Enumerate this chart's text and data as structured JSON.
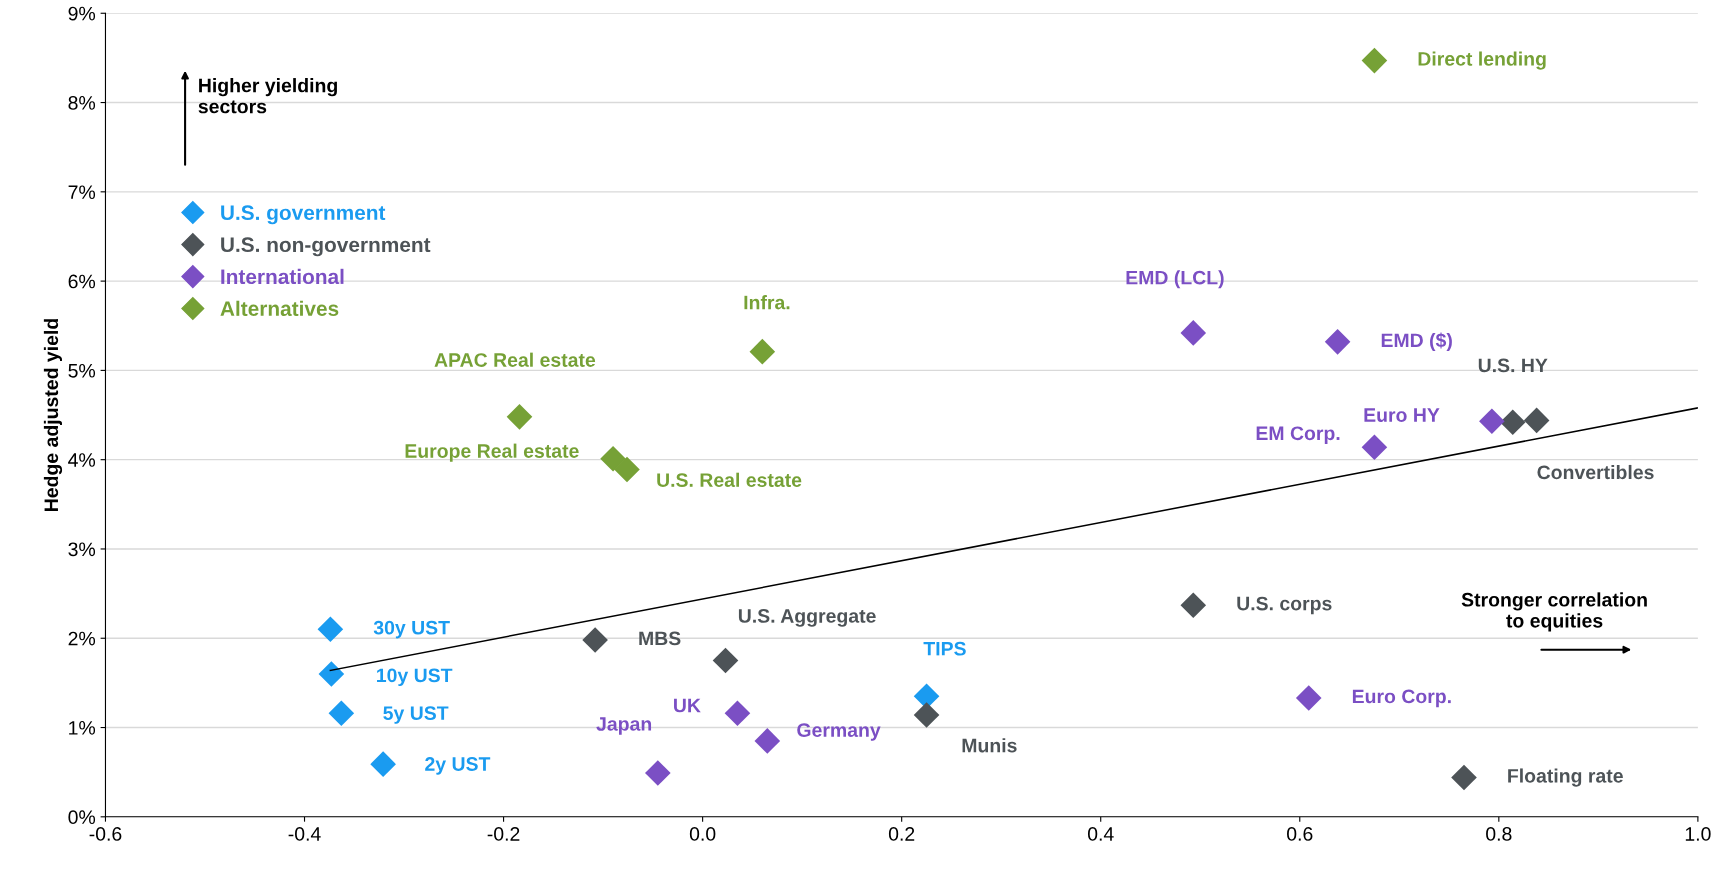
{
  "chart_data": {
    "type": "scatter",
    "ylabel": "Hedge adjusted yield",
    "xlim": [
      -0.6,
      1.0
    ],
    "ylim": [
      0,
      9
    ],
    "xticks": [
      {
        "value": -0.6,
        "label": "-0.6"
      },
      {
        "value": -0.4,
        "label": "-0.4"
      },
      {
        "value": -0.2,
        "label": "-0.2"
      },
      {
        "value": 0,
        "label": "0.0"
      },
      {
        "value": 0.2,
        "label": "0.2"
      },
      {
        "value": 0.4,
        "label": "0.4"
      },
      {
        "value": 0.6,
        "label": "0.6"
      },
      {
        "value": 0.8,
        "label": "0.8"
      },
      {
        "value": 1.0,
        "label": "1.0"
      }
    ],
    "yticks": [
      {
        "value": 0,
        "label": "0%"
      },
      {
        "value": 1,
        "label": "1%"
      },
      {
        "value": 2,
        "label": "2%"
      },
      {
        "value": 3,
        "label": "3%"
      },
      {
        "value": 4,
        "label": "4%"
      },
      {
        "value": 5,
        "label": "5%"
      },
      {
        "value": 6,
        "label": "6%"
      },
      {
        "value": 7,
        "label": "7%"
      },
      {
        "value": 8,
        "label": "8%"
      },
      {
        "value": 9,
        "label": "9%"
      }
    ],
    "grid": "y",
    "legend": "top left",
    "marker": "diamond",
    "series": [
      {
        "name": "U.S. government",
        "color": "#1a9bf0",
        "x": [
          -0.374,
          -0.373,
          -0.363,
          -0.321,
          0.225
        ],
        "values": [
          2.1,
          1.6,
          1.16,
          0.59,
          1.35
        ]
      },
      {
        "name": "U.S. non-government",
        "color": "#4d5357",
        "x": [
          -0.108,
          0.023,
          0.225,
          0.493,
          0.814,
          0.838,
          0.765
        ],
        "values": [
          1.98,
          1.75,
          1.14,
          2.37,
          4.42,
          4.44,
          0.44
        ]
      },
      {
        "name": "International",
        "color": "#7b4fc4",
        "x": [
          -0.045,
          0.035,
          0.065,
          0.493,
          0.638,
          0.675,
          0.793,
          0.609
        ],
        "values": [
          0.49,
          1.16,
          0.85,
          5.42,
          5.32,
          4.14,
          4.43,
          1.33
        ]
      },
      {
        "name": "Alternatives",
        "color": "#76a136",
        "x": [
          0.675,
          0.06,
          -0.184,
          -0.09,
          -0.076
        ],
        "values": [
          8.47,
          5.21,
          4.48,
          4.01,
          3.89
        ]
      },
      {
        "type": "line",
        "marker": "none",
        "color": "#000000",
        "x": [
          -0.374,
          1.0
        ],
        "values": [
          1.64,
          4.58
        ]
      }
    ],
    "annotations": [
      {
        "text": "30y UST",
        "x": -0.374,
        "y": 2.1
      },
      {
        "text": "10y UST",
        "x": -0.373,
        "y": 1.6
      },
      {
        "text": "5y UST",
        "x": -0.363,
        "y": 1.16
      },
      {
        "text": "2y UST",
        "x": -0.321,
        "y": 0.59
      },
      {
        "text": "TIPS",
        "x": 0.225,
        "y": 1.35
      },
      {
        "text": "MBS",
        "x": -0.108,
        "y": 1.98
      },
      {
        "text": "U.S. Aggregate",
        "x": 0.023,
        "y": 1.75
      },
      {
        "text": "Munis",
        "x": 0.225,
        "y": 1.14
      },
      {
        "text": "U.S. corps",
        "x": 0.493,
        "y": 2.37
      },
      {
        "text": "U.S. HY",
        "x": 0.814,
        "y": 4.42
      },
      {
        "text": "Convertibles",
        "x": 0.838,
        "y": 4.44
      },
      {
        "text": "Floating rate",
        "x": 0.765,
        "y": 0.44
      },
      {
        "text": "Japan",
        "x": -0.045,
        "y": 0.49
      },
      {
        "text": "UK",
        "x": 0.035,
        "y": 1.16
      },
      {
        "text": "Germany",
        "x": 0.065,
        "y": 0.85
      },
      {
        "text": "EMD (LCL)",
        "x": 0.493,
        "y": 5.42
      },
      {
        "text": "EMD ($)",
        "x": 0.638,
        "y": 5.32
      },
      {
        "text": "EM Corp.",
        "x": 0.675,
        "y": 4.14
      },
      {
        "text": "Euro HY",
        "x": 0.793,
        "y": 4.43
      },
      {
        "text": "Euro Corp.",
        "x": 0.609,
        "y": 1.33
      },
      {
        "text": "Direct lending",
        "x": 0.675,
        "y": 8.47
      },
      {
        "text": "Infra.",
        "x": 0.06,
        "y": 5.21
      },
      {
        "text": "APAC Real estate",
        "x": -0.184,
        "y": 4.48
      },
      {
        "text": "Europe Real estate",
        "x": -0.09,
        "y": 4.01
      },
      {
        "text": "U.S. Real estate",
        "x": -0.076,
        "y": 3.89
      },
      "Higher yielding\nsectors",
      "Stronger correlation\nto equities"
    ]
  }
}
